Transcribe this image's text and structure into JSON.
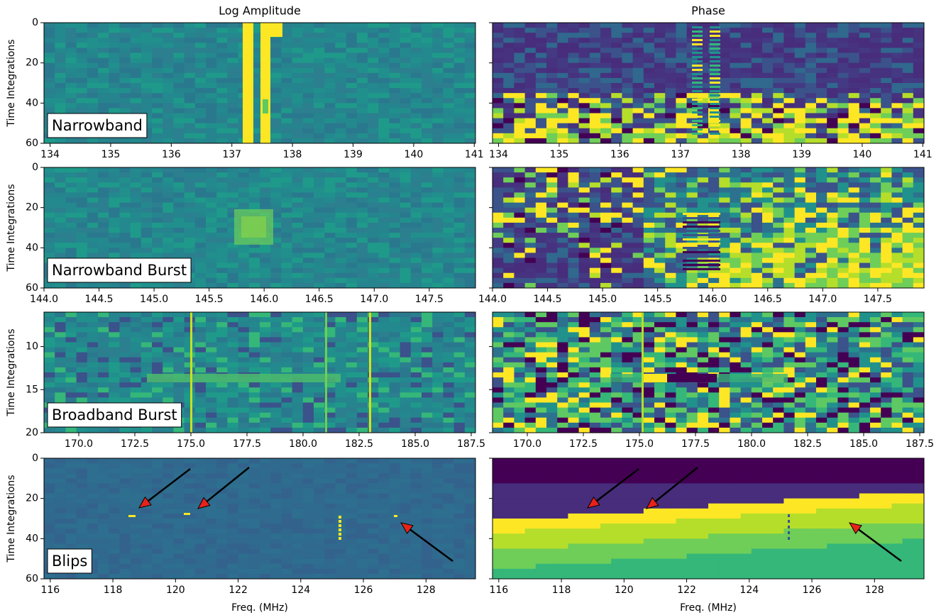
{
  "chart_data": [
    {
      "type": "heatmap",
      "title": "Log Amplitude",
      "ylabel": "Time Integrations",
      "annotation": "Narrowband",
      "xlim": [
        133.9,
        141.02
      ],
      "xticks": [
        134,
        135,
        136,
        137,
        138,
        139,
        140,
        141
      ],
      "ylim": [
        60,
        0
      ],
      "yticks": [
        0,
        20,
        40,
        60
      ]
    },
    {
      "type": "heatmap",
      "title": "Phase",
      "xlim": [
        133.9,
        141.02
      ],
      "xticks": [
        134,
        135,
        136,
        137,
        138,
        139,
        140,
        141
      ],
      "ylim": [
        60,
        0
      ]
    },
    {
      "type": "heatmap",
      "ylabel": "Time Integrations",
      "annotation": "Narrowband Burst",
      "xlim": [
        144.0,
        147.92
      ],
      "xticks": [
        {
          "value": 144,
          "label": "144.0"
        },
        144.5,
        {
          "value": 145,
          "label": "145.0"
        },
        145.5,
        {
          "value": 146,
          "label": "146.0"
        },
        146.5,
        {
          "value": 147,
          "label": "147.0"
        },
        147.5
      ],
      "ylim": [
        60,
        0
      ],
      "yticks": [
        0,
        20,
        40,
        60
      ]
    },
    {
      "type": "heatmap",
      "xlim": [
        144.0,
        147.92
      ],
      "xticks": [
        {
          "value": 144,
          "label": "144.0"
        },
        144.5,
        {
          "value": 145,
          "label": "145.0"
        },
        145.5,
        {
          "value": 146,
          "label": "146.0"
        },
        146.5,
        {
          "value": 147,
          "label": "147.0"
        },
        147.5
      ],
      "ylim": [
        60,
        0
      ]
    },
    {
      "type": "heatmap",
      "ylabel": "Time Integrations",
      "annotation": "Broadband Burst",
      "xlim": [
        168.45,
        187.69
      ],
      "xticks": [
        {
          "value": 170,
          "label": "170.0"
        },
        172.5,
        {
          "value": 175,
          "label": "175.0"
        },
        177.5,
        {
          "value": 180,
          "label": "180.0"
        },
        182.5,
        {
          "value": 185,
          "label": "185.0"
        },
        187.5
      ],
      "ylim": [
        20,
        6
      ],
      "yticks": [
        10,
        15,
        20
      ]
    },
    {
      "type": "heatmap",
      "xlim": [
        168.45,
        187.69
      ],
      "xticks": [
        {
          "value": 170,
          "label": "170.0"
        },
        172.5,
        {
          "value": 175,
          "label": "175.0"
        },
        177.5,
        {
          "value": 180,
          "label": "180.0"
        },
        182.5,
        {
          "value": 185,
          "label": "185.0"
        },
        187.5
      ],
      "ylim": [
        20,
        6
      ]
    },
    {
      "type": "heatmap",
      "ylabel": "Time Integrations",
      "annotation": "Blips",
      "xlabel": "Freq. (MHz)",
      "xlim": [
        115.8,
        129.58
      ],
      "xticks": [
        116,
        118,
        120,
        122,
        124,
        126,
        128
      ],
      "ylim": [
        60,
        0
      ],
      "yticks": [
        0,
        20,
        40,
        60
      ]
    },
    {
      "type": "heatmap",
      "xlabel": "Freq. (MHz)",
      "xlim": [
        115.8,
        129.58
      ],
      "xticks": [
        116,
        118,
        120,
        122,
        124,
        126,
        128
      ],
      "ylim": [
        60,
        0
      ]
    }
  ]
}
